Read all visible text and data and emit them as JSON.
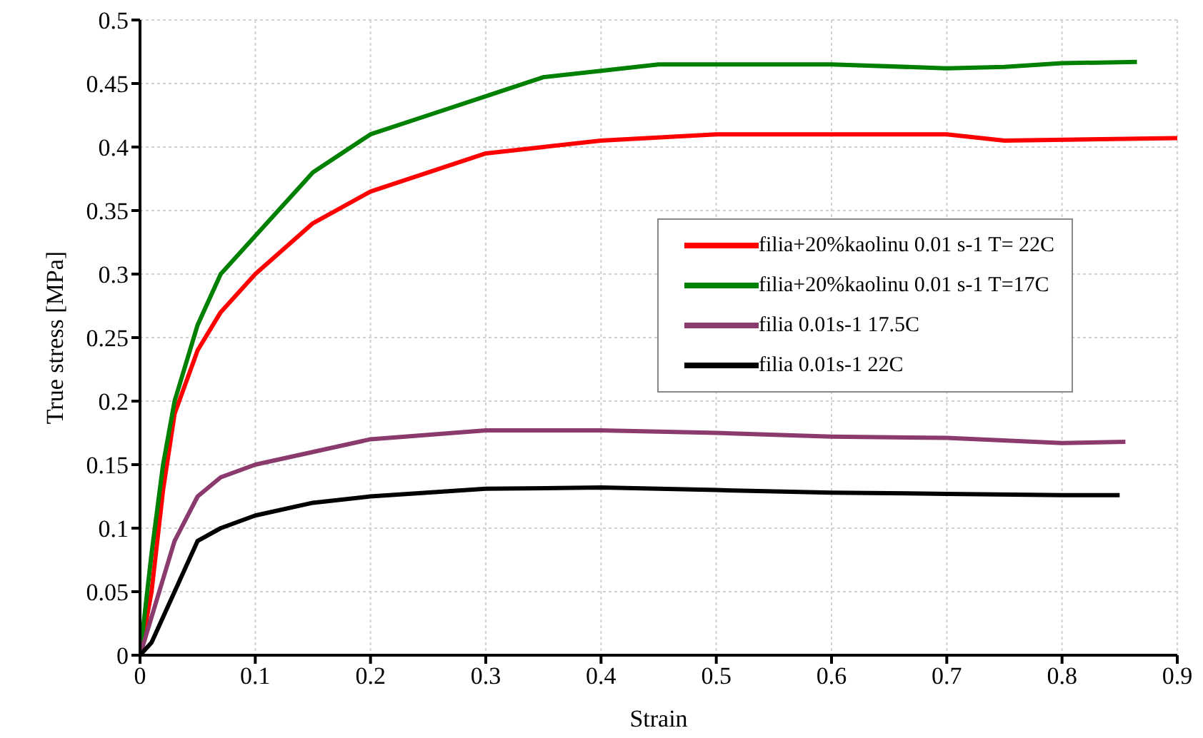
{
  "chart_data": {
    "type": "line",
    "xlabel": "Strain",
    "ylabel": "True stress [MPa]",
    "xlim": [
      0,
      0.9
    ],
    "xticks": [
      0,
      0.1,
      0.2,
      0.3,
      0.4,
      0.5,
      0.6,
      0.7,
      0.8,
      0.9
    ],
    "ylim": [
      0,
      0.5
    ],
    "yticks": [
      0,
      0.05,
      0.1,
      0.15,
      0.2,
      0.25,
      0.3,
      0.35,
      0.4,
      0.45,
      0.5
    ],
    "grid": true,
    "legend": "right",
    "marker": "none",
    "line_style": "solid",
    "series": [
      {
        "name": "filia+20%kaolinu 0.01 s-1 T= 22C",
        "color": "#ff0000",
        "x": [
          0,
          0.01,
          0.02,
          0.03,
          0.05,
          0.07,
          0.1,
          0.15,
          0.2,
          0.25,
          0.3,
          0.35,
          0.4,
          0.5,
          0.6,
          0.7,
          0.75,
          0.9
        ],
        "values": [
          0,
          0.05,
          0.13,
          0.19,
          0.24,
          0.27,
          0.3,
          0.34,
          0.365,
          0.38,
          0.395,
          0.4,
          0.405,
          0.41,
          0.41,
          0.41,
          0.405,
          0.407
        ]
      },
      {
        "name": "filia+20%kaolinu 0.01 s-1 T=17C",
        "color": "#008000",
        "x": [
          0,
          0.01,
          0.02,
          0.03,
          0.05,
          0.07,
          0.1,
          0.15,
          0.2,
          0.25,
          0.3,
          0.35,
          0.4,
          0.45,
          0.5,
          0.6,
          0.7,
          0.75,
          0.8,
          0.865
        ],
        "values": [
          0,
          0.08,
          0.15,
          0.2,
          0.26,
          0.3,
          0.33,
          0.38,
          0.41,
          0.425,
          0.44,
          0.455,
          0.46,
          0.465,
          0.465,
          0.465,
          0.462,
          0.463,
          0.466,
          0.467
        ]
      },
      {
        "name": "filia 0.01s-1 17.5C",
        "color": "#8b3a6e",
        "x": [
          0,
          0.01,
          0.03,
          0.05,
          0.07,
          0.1,
          0.15,
          0.2,
          0.3,
          0.4,
          0.5,
          0.6,
          0.7,
          0.8,
          0.855
        ],
        "values": [
          0,
          0.03,
          0.09,
          0.125,
          0.14,
          0.15,
          0.16,
          0.17,
          0.177,
          0.177,
          0.175,
          0.172,
          0.171,
          0.167,
          0.168
        ]
      },
      {
        "name": "filia 0.01s-1 22C",
        "color": "#000000",
        "x": [
          0,
          0.01,
          0.03,
          0.05,
          0.07,
          0.1,
          0.15,
          0.2,
          0.3,
          0.4,
          0.5,
          0.6,
          0.7,
          0.8,
          0.85
        ],
        "values": [
          0,
          0.01,
          0.05,
          0.09,
          0.1,
          0.11,
          0.12,
          0.125,
          0.131,
          0.132,
          0.13,
          0.128,
          0.127,
          0.126,
          0.126
        ]
      }
    ]
  }
}
